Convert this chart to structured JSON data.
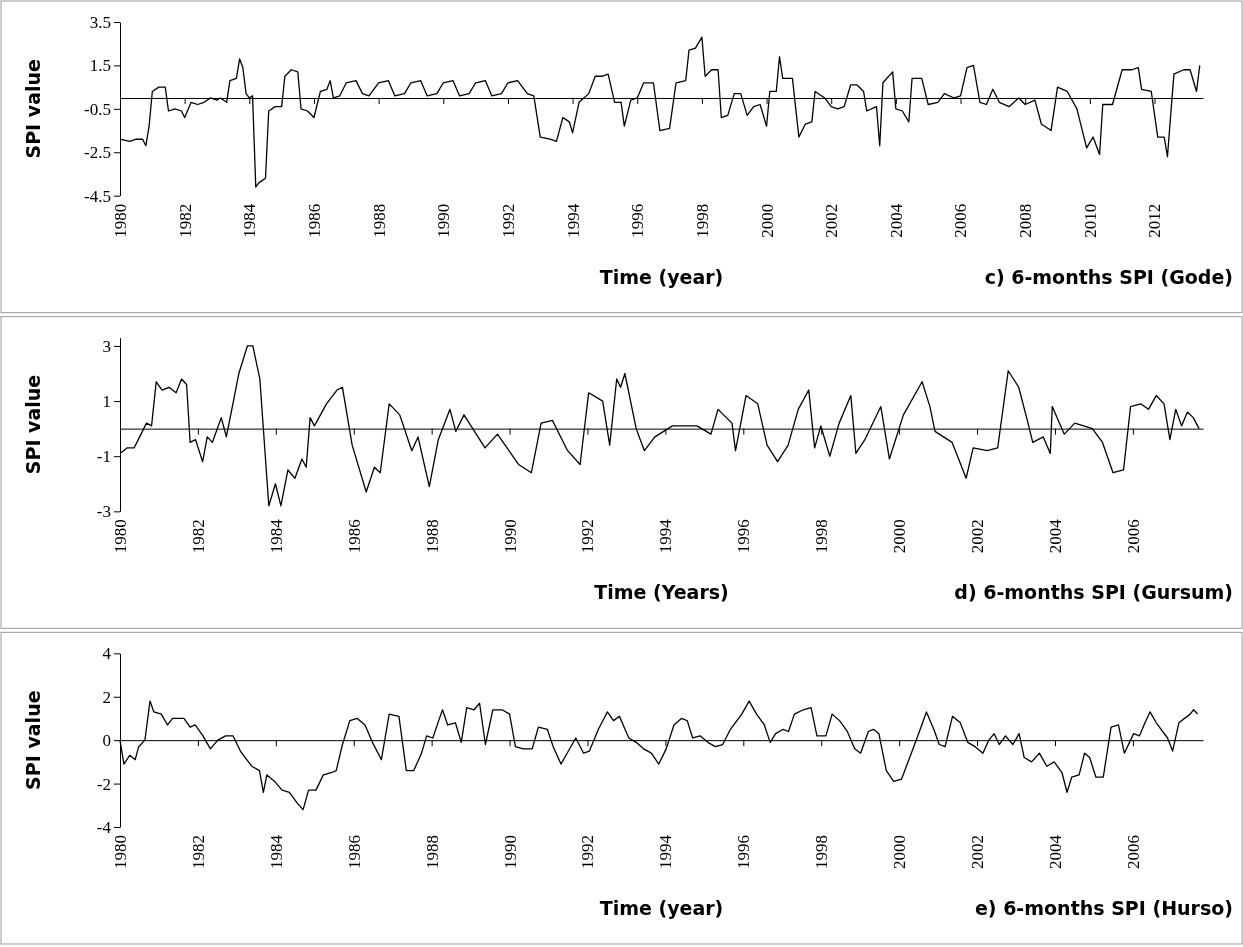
{
  "chart_data": [
    {
      "type": "line",
      "ylabel": "SPI value",
      "xlabel": "Time (year)",
      "annotations": [
        "c) 6-months SPI (Gode)"
      ],
      "color": "#000000",
      "xlim": [
        1980,
        2013.5
      ],
      "xticks": [
        1980,
        1982,
        1984,
        1986,
        1988,
        1990,
        1992,
        1994,
        1996,
        1998,
        2000,
        2002,
        2004,
        2006,
        2008,
        2010,
        2012
      ],
      "ylim": [
        -4.5,
        3.5
      ],
      "yticks": [
        3.5,
        1.5,
        -0.5,
        -2.5,
        -4.5
      ],
      "x": [
        1980.0,
        1980.3,
        1980.5,
        1980.7,
        1980.8,
        1980.9,
        1981.0,
        1981.2,
        1981.4,
        1981.5,
        1981.7,
        1981.9,
        1982.0,
        1982.2,
        1982.4,
        1982.6,
        1982.8,
        1983.0,
        1983.1,
        1983.3,
        1983.4,
        1983.6,
        1983.7,
        1983.8,
        1983.9,
        1984.0,
        1984.1,
        1984.2,
        1984.3,
        1984.5,
        1984.6,
        1984.8,
        1985.0,
        1985.1,
        1985.3,
        1985.5,
        1985.6,
        1985.8,
        1986.0,
        1986.2,
        1986.4,
        1986.5,
        1986.6,
        1986.8,
        1987.0,
        1987.3,
        1987.5,
        1987.7,
        1988.0,
        1988.3,
        1988.5,
        1988.8,
        1989.0,
        1989.3,
        1989.5,
        1989.8,
        1990.0,
        1990.3,
        1990.5,
        1990.8,
        1991.0,
        1991.3,
        1991.5,
        1991.8,
        1992.0,
        1992.3,
        1992.6,
        1992.8,
        1993.0,
        1993.3,
        1993.5,
        1993.7,
        1993.9,
        1994.0,
        1994.2,
        1994.5,
        1994.7,
        1994.9,
        1995.1,
        1995.3,
        1995.5,
        1995.6,
        1995.8,
        1996.0,
        1996.2,
        1996.5,
        1996.7,
        1997.0,
        1997.2,
        1997.5,
        1997.6,
        1997.8,
        1998.0,
        1998.1,
        1998.3,
        1998.5,
        1998.6,
        1998.8,
        1999.0,
        1999.2,
        1999.4,
        1999.6,
        1999.8,
        2000.0,
        2000.1,
        2000.3,
        2000.4,
        2000.5,
        2000.8,
        2001.0,
        2001.2,
        2001.4,
        2001.5,
        2001.8,
        2002.0,
        2002.2,
        2002.4,
        2002.6,
        2002.8,
        2003.0,
        2003.1,
        2003.4,
        2003.5,
        2003.6,
        2003.9,
        2004.0,
        2004.2,
        2004.4,
        2004.5,
        2004.8,
        2005.0,
        2005.3,
        2005.5,
        2005.8,
        2006.0,
        2006.2,
        2006.4,
        2006.6,
        2006.8,
        2007.0,
        2007.2,
        2007.5,
        2007.8,
        2008.0,
        2008.3,
        2008.5,
        2008.8,
        2009.0,
        2009.3,
        2009.6,
        2009.9,
        2010.1,
        2010.3,
        2010.4,
        2010.7,
        2011.0,
        2011.3,
        2011.5,
        2011.6,
        2011.9,
        2012.1,
        2012.3,
        2012.4,
        2012.6,
        2012.9,
        2013.1,
        2013.3,
        2013.4
      ],
      "values": [
        -1.9,
        -2.0,
        -1.9,
        -1.9,
        -2.2,
        -1.3,
        0.3,
        0.5,
        0.5,
        -0.6,
        -0.5,
        -0.6,
        -0.9,
        -0.2,
        -0.3,
        -0.2,
        0.0,
        -0.1,
        0.0,
        -0.2,
        0.8,
        0.9,
        1.8,
        1.4,
        0.2,
        0.0,
        0.1,
        -4.1,
        -3.9,
        -3.7,
        -0.6,
        -0.4,
        -0.4,
        1.0,
        1.3,
        1.2,
        -0.5,
        -0.6,
        -0.9,
        0.3,
        0.4,
        0.8,
        0.0,
        0.1,
        0.7,
        0.8,
        0.2,
        0.1,
        0.7,
        0.8,
        0.1,
        0.2,
        0.7,
        0.8,
        0.1,
        0.2,
        0.7,
        0.8,
        0.1,
        0.2,
        0.7,
        0.8,
        0.1,
        0.2,
        0.7,
        0.8,
        0.2,
        0.1,
        -1.8,
        -1.9,
        -2.0,
        -0.9,
        -1.1,
        -1.6,
        -0.2,
        0.2,
        1.0,
        1.0,
        1.1,
        -0.2,
        -0.2,
        -1.3,
        -0.1,
        0.0,
        0.7,
        0.7,
        -1.5,
        -1.4,
        0.7,
        0.8,
        2.2,
        2.3,
        2.8,
        1.0,
        1.3,
        1.3,
        -0.9,
        -0.8,
        0.2,
        0.2,
        -0.8,
        -0.4,
        -0.3,
        -1.3,
        0.3,
        0.3,
        1.9,
        0.9,
        0.9,
        -1.8,
        -1.2,
        -1.1,
        0.3,
        0.0,
        -0.4,
        -0.5,
        -0.4,
        0.6,
        0.6,
        0.3,
        -0.6,
        -0.4,
        -2.2,
        0.7,
        1.2,
        -0.5,
        -0.6,
        -1.1,
        0.9,
        0.9,
        -0.3,
        -0.2,
        0.2,
        0.0,
        0.1,
        1.4,
        1.5,
        -0.2,
        -0.3,
        0.4,
        -0.2,
        -0.4,
        0.0,
        -0.3,
        -0.1,
        -1.2,
        -1.5,
        0.5,
        0.3,
        -0.5,
        -2.3,
        -1.8,
        -2.6,
        -0.3,
        -0.3,
        1.3,
        1.3,
        1.4,
        0.4,
        0.3,
        -1.8,
        -1.8,
        -2.7,
        1.1,
        1.3,
        1.3,
        0.3,
        1.5
      ]
    },
    {
      "type": "line",
      "ylabel": "SPI value",
      "xlabel": "Time (Years)",
      "annotations": [
        "d) 6-months SPI (Gursum)"
      ],
      "color": "#000000",
      "xlim": [
        1980,
        2007.8
      ],
      "xticks": [
        1980,
        1982,
        1984,
        1986,
        1988,
        1990,
        1992,
        1994,
        1996,
        1998,
        2000,
        2002,
        2004,
        2006
      ],
      "ylim": [
        -3,
        3.3
      ],
      "yticks": [
        3,
        1,
        -1,
        -3
      ],
      "x": [
        1980.0,
        1980.18,
        1980.36,
        1980.54,
        1980.68,
        1980.81,
        1980.93,
        1981.08,
        1981.26,
        1981.44,
        1981.58,
        1981.71,
        1981.8,
        1981.94,
        1982.12,
        1982.24,
        1982.37,
        1982.6,
        1982.73,
        1982.87,
        1983.05,
        1983.27,
        1983.41,
        1983.59,
        1983.82,
        1983.99,
        1984.13,
        1984.31,
        1984.49,
        1984.67,
        1984.78,
        1984.88,
        1984.99,
        1985.3,
        1985.57,
        1985.71,
        1985.96,
        1986.32,
        1986.53,
        1986.68,
        1986.91,
        1987.18,
        1987.49,
        1987.65,
        1987.94,
        1988.17,
        1988.47,
        1988.62,
        1988.83,
        1989.37,
        1989.69,
        1990.23,
        1990.56,
        1990.81,
        1991.1,
        1991.49,
        1991.81,
        1992.03,
        1992.39,
        1992.57,
        1992.75,
        1992.85,
        1992.96,
        1993.25,
        1993.46,
        1993.73,
        1994.18,
        1994.81,
        1995.17,
        1995.35,
        1995.71,
        1995.8,
        1996.07,
        1996.37,
        1996.61,
        1996.88,
        1997.15,
        1997.41,
        1997.68,
        1997.83,
        1997.99,
        1998.22,
        1998.46,
        1998.76,
        1998.89,
        1999.12,
        1999.53,
        1999.75,
        2000.11,
        2000.59,
        2000.79,
        2000.92,
        2001.36,
        2001.72,
        2001.9,
        2002.26,
        2002.53,
        2002.8,
        2003.07,
        2003.29,
        2003.43,
        2003.7,
        2003.88,
        2003.93,
        2004.24,
        2004.51,
        2004.96,
        2005.22,
        2005.49,
        2005.76,
        2005.94,
        2006.2,
        2006.4,
        2006.6,
        2006.8,
        2006.95,
        2007.1,
        2007.25,
        2007.4,
        2007.55,
        2007.7
      ],
      "values": [
        -0.9,
        -0.7,
        -0.7,
        -0.2,
        0.2,
        0.1,
        1.7,
        1.4,
        1.5,
        1.3,
        1.8,
        1.6,
        -0.5,
        -0.4,
        -1.2,
        -0.3,
        -0.5,
        0.4,
        -0.3,
        0.7,
        2.0,
        3.0,
        3.0,
        1.8,
        -2.8,
        -2.0,
        -2.8,
        -1.5,
        -1.8,
        -1.1,
        -1.4,
        0.4,
        0.1,
        0.9,
        1.4,
        1.5,
        -0.6,
        -2.3,
        -1.4,
        -1.6,
        0.9,
        0.5,
        -0.8,
        -0.3,
        -2.1,
        -0.4,
        0.7,
        -0.1,
        0.5,
        -0.7,
        -0.2,
        -1.3,
        -1.6,
        0.2,
        0.3,
        -0.8,
        -1.3,
        1.3,
        1.0,
        -0.6,
        1.8,
        1.5,
        2.0,
        0.0,
        -0.8,
        -0.3,
        0.1,
        0.1,
        -0.2,
        0.7,
        0.2,
        -0.8,
        1.2,
        0.9,
        -0.6,
        -1.2,
        -0.6,
        0.7,
        1.4,
        -0.7,
        0.1,
        -1.0,
        0.2,
        1.2,
        -0.9,
        -0.4,
        0.8,
        -1.1,
        0.5,
        1.7,
        0.8,
        -0.1,
        -0.5,
        -1.8,
        -0.7,
        -0.8,
        -0.7,
        2.1,
        1.5,
        0.3,
        -0.5,
        -0.3,
        -0.9,
        0.8,
        -0.2,
        0.2,
        0.0,
        -0.5,
        -1.6,
        -1.5,
        0.8,
        0.9,
        0.7,
        1.2,
        0.9,
        -0.4,
        0.7,
        0.1,
        0.6,
        0.4,
        0.0
      ]
    },
    {
      "type": "line",
      "ylabel": "SPI value",
      "xlabel": "Time (year)",
      "annotations": [
        "e) 6-months SPI (Hurso)"
      ],
      "color": "#000000",
      "xlim": [
        1980,
        2007.8
      ],
      "xticks": [
        1980,
        1982,
        1984,
        1986,
        1988,
        1990,
        1992,
        1994,
        1996,
        1998,
        2000,
        2002,
        2004,
        2006
      ],
      "ylim": [
        -4,
        4
      ],
      "yticks": [
        4,
        2,
        0,
        -2,
        -4
      ],
      "x": [
        1980.0,
        1980.1,
        1980.25,
        1980.39,
        1980.48,
        1980.64,
        1980.77,
        1980.87,
        1981.06,
        1981.22,
        1981.35,
        1981.64,
        1981.8,
        1981.93,
        1982.13,
        1982.32,
        1982.51,
        1982.71,
        1982.9,
        1983.09,
        1983.38,
        1983.58,
        1983.68,
        1983.77,
        1983.97,
        1984.16,
        1984.35,
        1984.55,
        1984.7,
        1984.84,
        1985.03,
        1985.22,
        1985.42,
        1985.55,
        1985.71,
        1985.9,
        1986.09,
        1986.29,
        1986.48,
        1986.71,
        1986.91,
        1987.16,
        1987.35,
        1987.54,
        1987.74,
        1987.87,
        1988.03,
        1988.18,
        1988.28,
        1988.41,
        1988.61,
        1988.76,
        1988.9,
        1989.09,
        1989.23,
        1989.38,
        1989.57,
        1989.81,
        1990.0,
        1990.15,
        1990.35,
        1990.58,
        1990.74,
        1990.97,
        1991.12,
        1991.32,
        1991.51,
        1991.7,
        1991.9,
        1992.05,
        1992.28,
        1992.51,
        1992.67,
        1992.82,
        1993.06,
        1993.25,
        1993.44,
        1993.64,
        1993.83,
        1994.02,
        1994.22,
        1994.41,
        1994.56,
        1994.7,
        1994.89,
        1995.09,
        1995.28,
        1995.47,
        1995.67,
        1995.96,
        1996.15,
        1996.34,
        1996.54,
        1996.69,
        1996.83,
        1997.02,
        1997.16,
        1997.31,
        1997.54,
        1997.74,
        1997.89,
        1998.12,
        1998.28,
        1998.47,
        1998.67,
        1998.86,
        1999.01,
        1999.21,
        1999.34,
        1999.48,
        1999.67,
        1999.86,
        2000.06,
        2000.25,
        2000.5,
        2000.7,
        2000.89,
        2001.03,
        2001.18,
        2001.37,
        2001.57,
        2001.76,
        2001.95,
        2002.15,
        2002.3,
        2002.44,
        2002.57,
        2002.73,
        2002.92,
        2003.08,
        2003.21,
        2003.4,
        2003.6,
        2003.79,
        2003.98,
        2004.18,
        2004.31,
        2004.43,
        2004.62,
        2004.76,
        2004.89,
        2005.05,
        2005.24,
        2005.44,
        2005.63,
        2005.78,
        2006.02,
        2006.17,
        2006.31,
        2006.44,
        2006.6,
        2006.89,
        2007.02,
        2007.18,
        2007.47,
        2007.56,
        2007.66
      ],
      "values": [
        0.0,
        -1.1,
        -0.7,
        -0.9,
        -0.3,
        0.0,
        1.8,
        1.3,
        1.2,
        0.7,
        1.0,
        1.0,
        0.6,
        0.7,
        0.2,
        -0.4,
        0.0,
        0.2,
        0.2,
        -0.5,
        -1.2,
        -1.4,
        -2.4,
        -1.6,
        -1.9,
        -2.3,
        -2.4,
        -2.9,
        -3.2,
        -2.3,
        -2.3,
        -1.6,
        -1.5,
        -1.4,
        -0.2,
        0.9,
        1.0,
        0.7,
        -0.1,
        -0.9,
        1.2,
        1.1,
        -1.4,
        -1.4,
        -0.6,
        0.2,
        0.1,
        0.9,
        1.4,
        0.7,
        0.8,
        -0.1,
        1.5,
        1.4,
        1.7,
        -0.2,
        1.4,
        1.4,
        1.2,
        -0.3,
        -0.4,
        -0.4,
        0.6,
        0.5,
        -0.3,
        -1.1,
        -0.5,
        0.1,
        -0.6,
        -0.5,
        0.5,
        1.3,
        0.9,
        1.1,
        0.1,
        -0.1,
        -0.4,
        -0.6,
        -1.1,
        -0.4,
        0.7,
        1.0,
        0.9,
        0.1,
        0.2,
        -0.1,
        -0.3,
        -0.2,
        0.5,
        1.2,
        1.8,
        1.2,
        0.7,
        -0.1,
        0.3,
        0.5,
        0.4,
        1.2,
        1.4,
        1.5,
        0.2,
        0.2,
        1.2,
        0.9,
        0.4,
        -0.4,
        -0.6,
        0.4,
        0.5,
        0.3,
        -1.4,
        -1.9,
        -1.8,
        -0.9,
        0.3,
        1.3,
        0.5,
        -0.2,
        -0.3,
        1.1,
        0.8,
        -0.1,
        -0.3,
        -0.6,
        0.0,
        0.3,
        -0.2,
        0.2,
        -0.2,
        0.3,
        -0.8,
        -1.0,
        -0.6,
        -1.2,
        -1.0,
        -1.5,
        -2.4,
        -1.7,
        -1.6,
        -0.6,
        -0.8,
        -1.7,
        -1.7,
        0.6,
        0.7,
        -0.6,
        0.3,
        0.2,
        0.8,
        1.3,
        0.8,
        0.1,
        -0.5,
        0.8,
        1.2,
        1.4,
        1.2
      ]
    }
  ]
}
